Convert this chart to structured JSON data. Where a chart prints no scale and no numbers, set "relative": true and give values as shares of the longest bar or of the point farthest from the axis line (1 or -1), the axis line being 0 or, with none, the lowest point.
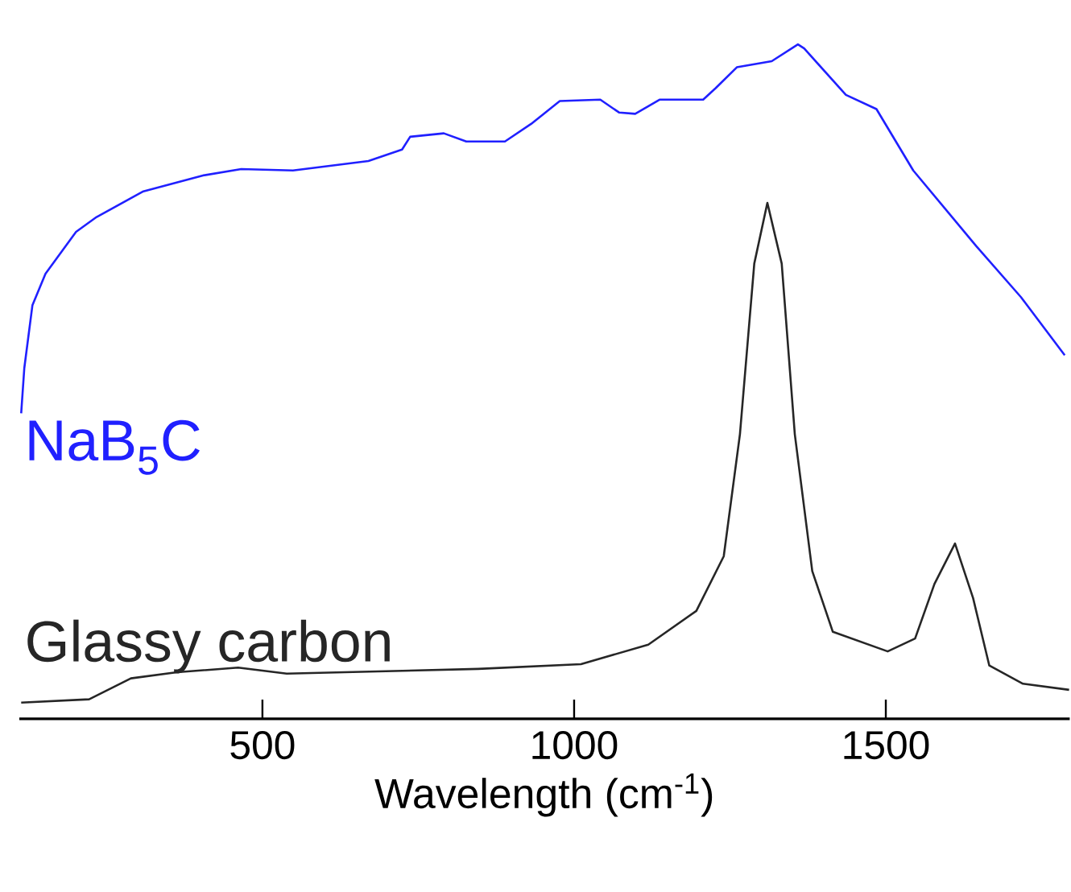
{
  "chart_data": {
    "type": "line",
    "relative": true,
    "xlabel": "Wavelength (cm$^{-1}$)",
    "xlim": [
      110,
      1795
    ],
    "xticks": [
      500,
      1000,
      1500
    ],
    "series": [
      {
        "name": "NaB$_{5}$C",
        "color": "#2020ff",
        "x": [
          113,
          118,
          131,
          152,
          201,
          234,
          309,
          407,
          466,
          549,
          670,
          724,
          737,
          791,
          827,
          889,
          931,
          977,
          1042,
          1072,
          1098,
          1137,
          1207,
          1227,
          1261,
          1317,
          1359,
          1369,
          1436,
          1485,
          1544,
          1645,
          1717,
          1787
        ],
        "values": [
          0.453,
          0.52,
          0.613,
          0.66,
          0.722,
          0.744,
          0.782,
          0.806,
          0.815,
          0.813,
          0.827,
          0.844,
          0.863,
          0.868,
          0.856,
          0.856,
          0.882,
          0.916,
          0.918,
          0.899,
          0.897,
          0.918,
          0.918,
          0.935,
          0.966,
          0.975,
          1,
          0.994,
          0.925,
          0.904,
          0.813,
          0.701,
          0.625,
          0.539
        ]
      },
      {
        "name": "Glassy carbon",
        "color": "#262626",
        "x": [
          113,
          222,
          289,
          363,
          461,
          539,
          846,
          1011,
          1119,
          1196,
          1240,
          1266,
          1289,
          1310,
          1333,
          1354,
          1382,
          1415,
          1503,
          1547,
          1578,
          1611,
          1640,
          1666,
          1720,
          1794
        ],
        "values": [
          0.024,
          0.029,
          0.06,
          0.069,
          0.076,
          0.067,
          0.074,
          0.081,
          0.11,
          0.16,
          0.241,
          0.422,
          0.675,
          0.765,
          0.675,
          0.422,
          0.219,
          0.129,
          0.1,
          0.119,
          0.2,
          0.26,
          0.179,
          0.079,
          0.052,
          0.043
        ]
      }
    ]
  }
}
